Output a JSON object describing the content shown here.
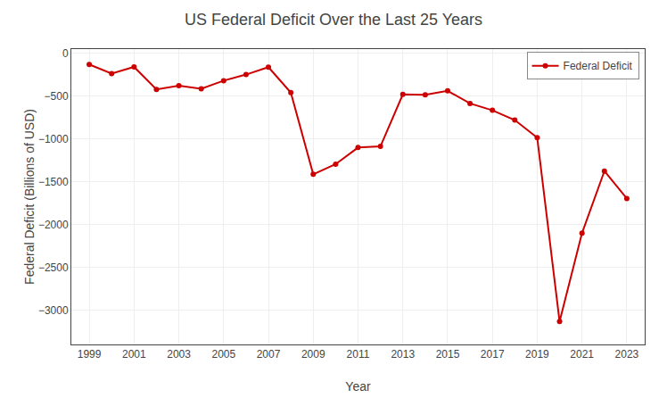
{
  "chart_data": {
    "type": "line",
    "title": "US Federal Deficit Over the Last 25 Years",
    "xlabel": "Year",
    "ylabel": "Federal Deficit (Billions of USD)",
    "x": [
      1999,
      2000,
      2001,
      2002,
      2003,
      2004,
      2005,
      2006,
      2007,
      2008,
      2009,
      2010,
      2011,
      2012,
      2013,
      2014,
      2015,
      2016,
      2017,
      2018,
      2019,
      2020,
      2021,
      2022,
      2023
    ],
    "series": [
      {
        "name": "Federal Deficit",
        "color": "#cc0000",
        "marker": "circle",
        "line_style": "solid",
        "values": [
          -130,
          -236,
          -158,
          -421,
          -378,
          -413,
          -319,
          -248,
          -161,
          -459,
          -1413,
          -1294,
          -1100,
          -1087,
          -480,
          -485,
          -438,
          -585,
          -665,
          -779,
          -984,
          -3132,
          -2100,
          -1375,
          -1695
        ]
      }
    ],
    "xlim": [
      1998.2,
      2023.8
    ],
    "xticks": [
      1999,
      2001,
      2003,
      2005,
      2007,
      2009,
      2011,
      2013,
      2015,
      2017,
      2019,
      2021,
      2023
    ],
    "ylim": [
      -3400,
      50
    ],
    "yticks": [
      0,
      {
        "value": -500,
        "label": "−500"
      },
      {
        "value": -1000,
        "label": "−1000"
      },
      {
        "value": -1500,
        "label": "−1500"
      },
      {
        "value": -2000,
        "label": "−2000"
      },
      {
        "value": -2500,
        "label": "−2500"
      },
      {
        "value": -3000,
        "label": "−3000"
      }
    ],
    "grid": true,
    "legend": "upper right"
  }
}
